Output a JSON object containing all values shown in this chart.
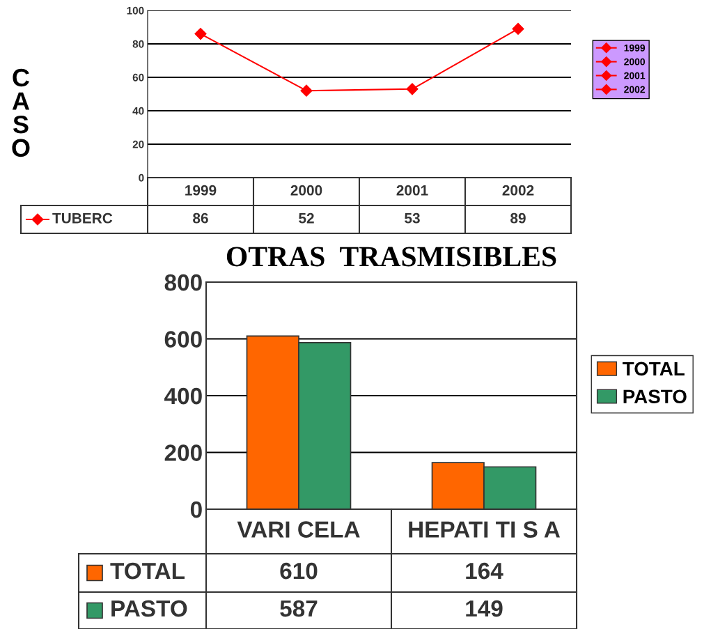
{
  "chart_data": [
    {
      "type": "line",
      "ylabel": "CASO",
      "categories": [
        "1999",
        "2000",
        "2001",
        "2002"
      ],
      "series": [
        {
          "name": "TUBERC",
          "color": "#ff0000",
          "values": [
            86,
            52,
            53,
            89
          ]
        }
      ],
      "ylim": [
        0,
        100
      ],
      "yticks": [
        0,
        20,
        40,
        60,
        80,
        100
      ],
      "grid": "y",
      "legend": "bottom left",
      "marker": "diamond",
      "data_labels": true,
      "tick_labels": "y"
    },
    {
      "type": "bar",
      "title": "OTRAS  TRASMISIBLES",
      "categories": [
        "VARI CELA",
        "HEPATI TI S A"
      ],
      "series": [
        {
          "name": "TOTAL",
          "color": "#ff6600",
          "values": [
            610,
            164
          ]
        },
        {
          "name": "PASTO",
          "color": "#339966",
          "values": [
            587,
            149
          ]
        }
      ],
      "ylim": [
        0,
        800
      ],
      "yticks": [
        0,
        200,
        400,
        600,
        800
      ],
      "grid": "y",
      "legend": "right",
      "data_labels": true,
      "tick_labels": "y"
    }
  ]
}
